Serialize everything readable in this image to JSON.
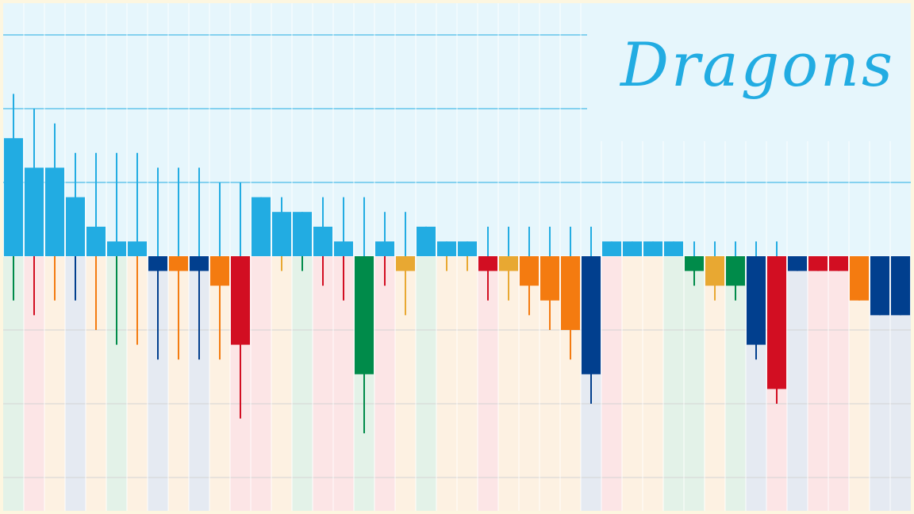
{
  "chart_data": {
    "type": "bar",
    "title": "Dragons",
    "xlabel": "",
    "ylabel": "",
    "ylim": [
      -17,
      17
    ],
    "grid": true,
    "legend": "none",
    "colors": {
      "top_background": "#e6f6fc",
      "frame": "#fdf6e0",
      "upper_gridline": "#22ace2",
      "lower_gridline": "#d4d4d4",
      "column_separator": "#ffffff",
      "positive": "#22ace2",
      "negative_palette": [
        "#d20e22",
        "#f47b10",
        "#e8a832",
        "#008b4a",
        "#013f8e"
      ],
      "column_tints": [
        "#e3f2e8",
        "#fce5e6",
        "#fdf1e2",
        "#e5eaf2"
      ]
    },
    "bars": [
      {
        "value": 8,
        "whisker_high": 11,
        "whisker_low": -3,
        "color": "#22ace2",
        "whisker_low_color": "#008b4a",
        "tint": "#e3f2e8"
      },
      {
        "value": 6,
        "whisker_high": 10,
        "whisker_low": -4,
        "color": "#22ace2",
        "whisker_low_color": "#d20e22",
        "tint": "#fce5e6"
      },
      {
        "value": 6,
        "whisker_high": 9,
        "whisker_low": -3,
        "color": "#22ace2",
        "whisker_low_color": "#f47b10",
        "tint": "#fdf1e2"
      },
      {
        "value": 4,
        "whisker_high": 7,
        "whisker_low": -3,
        "color": "#22ace2",
        "whisker_low_color": "#013f8e",
        "tint": "#e5eaf2"
      },
      {
        "value": 2,
        "whisker_high": 7,
        "whisker_low": -5,
        "color": "#22ace2",
        "whisker_low_color": "#f47b10",
        "tint": "#fdf1e2"
      },
      {
        "value": 1,
        "whisker_high": 7,
        "whisker_low": -6,
        "color": "#22ace2",
        "whisker_low_color": "#008b4a",
        "tint": "#e3f2e8"
      },
      {
        "value": 1,
        "whisker_high": 7,
        "whisker_low": -6,
        "color": "#22ace2",
        "whisker_low_color": "#f47b10",
        "tint": "#fdf1e2"
      },
      {
        "value": -1,
        "whisker_high": 6,
        "whisker_low": -7,
        "color": "#013f8e",
        "whisker_low_color": "#013f8e",
        "tint": "#e5eaf2"
      },
      {
        "value": -1,
        "whisker_high": 6,
        "whisker_low": -7,
        "color": "#f47b10",
        "whisker_low_color": "#f47b10",
        "tint": "#fdf1e2"
      },
      {
        "value": -1,
        "whisker_high": 6,
        "whisker_low": -7,
        "color": "#013f8e",
        "whisker_low_color": "#013f8e",
        "tint": "#e5eaf2"
      },
      {
        "value": -2,
        "whisker_high": 5,
        "whisker_low": -7,
        "color": "#f47b10",
        "whisker_low_color": "#f47b10",
        "tint": "#fdf1e2"
      },
      {
        "value": -6,
        "whisker_high": 5,
        "whisker_low": -11,
        "color": "#d20e22",
        "whisker_low_color": "#d20e22",
        "tint": "#fce5e6"
      },
      {
        "value": 4,
        "whisker_high": 4,
        "whisker_low": 0,
        "color": "#22ace2",
        "whisker_low_color": "#d20e22",
        "tint": "#fce5e6"
      },
      {
        "value": 3,
        "whisker_high": 4,
        "whisker_low": -1,
        "color": "#22ace2",
        "whisker_low_color": "#e8a832",
        "tint": "#fdf1e2"
      },
      {
        "value": 3,
        "whisker_high": 3,
        "whisker_low": -1,
        "color": "#22ace2",
        "whisker_low_color": "#008b4a",
        "tint": "#e3f2e8"
      },
      {
        "value": 2,
        "whisker_high": 4,
        "whisker_low": -2,
        "color": "#22ace2",
        "whisker_low_color": "#d20e22",
        "tint": "#fce5e6"
      },
      {
        "value": 1,
        "whisker_high": 4,
        "whisker_low": -3,
        "color": "#22ace2",
        "whisker_low_color": "#d20e22",
        "tint": "#fce5e6"
      },
      {
        "value": -8,
        "whisker_high": 4,
        "whisker_low": -12,
        "color": "#008b4a",
        "whisker_low_color": "#008b4a",
        "tint": "#e3f2e8"
      },
      {
        "value": 1,
        "whisker_high": 3,
        "whisker_low": -2,
        "color": "#22ace2",
        "whisker_low_color": "#d20e22",
        "tint": "#fce5e6"
      },
      {
        "value": -1,
        "whisker_high": 3,
        "whisker_low": -4,
        "color": "#e8a832",
        "whisker_low_color": "#e8a832",
        "tint": "#fdf1e2"
      },
      {
        "value": 2,
        "whisker_high": 2,
        "whisker_low": 0,
        "color": "#22ace2",
        "whisker_low_color": "#008b4a",
        "tint": "#e3f2e8"
      },
      {
        "value": 1,
        "whisker_high": 1,
        "whisker_low": -1,
        "color": "#22ace2",
        "whisker_low_color": "#e8a832",
        "tint": "#fdf1e2"
      },
      {
        "value": 1,
        "whisker_high": 1,
        "whisker_low": -1,
        "color": "#22ace2",
        "whisker_low_color": "#e8a832",
        "tint": "#fdf1e2"
      },
      {
        "value": -1,
        "whisker_high": 2,
        "whisker_low": -3,
        "color": "#d20e22",
        "whisker_low_color": "#d20e22",
        "tint": "#fce5e6"
      },
      {
        "value": -1,
        "whisker_high": 2,
        "whisker_low": -3,
        "color": "#e8a832",
        "whisker_low_color": "#e8a832",
        "tint": "#fdf1e2"
      },
      {
        "value": -2,
        "whisker_high": 2,
        "whisker_low": -4,
        "color": "#f47b10",
        "whisker_low_color": "#f47b10",
        "tint": "#fdf1e2"
      },
      {
        "value": -3,
        "whisker_high": 2,
        "whisker_low": -5,
        "color": "#f47b10",
        "whisker_low_color": "#f47b10",
        "tint": "#fdf1e2"
      },
      {
        "value": -5,
        "whisker_high": 2,
        "whisker_low": -7,
        "color": "#f47b10",
        "whisker_low_color": "#f47b10",
        "tint": "#fdf1e2"
      },
      {
        "value": -8,
        "whisker_high": 2,
        "whisker_low": -10,
        "color": "#013f8e",
        "whisker_low_color": "#013f8e",
        "tint": "#e5eaf2"
      },
      {
        "value": 1,
        "whisker_high": 1,
        "whisker_low": 0,
        "color": "#22ace2",
        "whisker_low_color": "#d20e22",
        "tint": "#fce5e6"
      },
      {
        "value": 1,
        "whisker_high": 1,
        "whisker_low": 0,
        "color": "#22ace2",
        "whisker_low_color": "#e8a832",
        "tint": "#fdf1e2"
      },
      {
        "value": 1,
        "whisker_high": 1,
        "whisker_low": 0,
        "color": "#22ace2",
        "whisker_low_color": "#e8a832",
        "tint": "#fdf1e2"
      },
      {
        "value": 1,
        "whisker_high": 1,
        "whisker_low": 0,
        "color": "#22ace2",
        "whisker_low_color": "#008b4a",
        "tint": "#e3f2e8"
      },
      {
        "value": -1,
        "whisker_high": 1,
        "whisker_low": -2,
        "color": "#008b4a",
        "whisker_low_color": "#008b4a",
        "tint": "#e3f2e8"
      },
      {
        "value": -2,
        "whisker_high": 1,
        "whisker_low": -3,
        "color": "#e8a832",
        "whisker_low_color": "#e8a832",
        "tint": "#fdf1e2"
      },
      {
        "value": -2,
        "whisker_high": 1,
        "whisker_low": -3,
        "color": "#008b4a",
        "whisker_low_color": "#008b4a",
        "tint": "#e3f2e8"
      },
      {
        "value": -6,
        "whisker_high": 1,
        "whisker_low": -7,
        "color": "#013f8e",
        "whisker_low_color": "#013f8e",
        "tint": "#e5eaf2"
      },
      {
        "value": -9,
        "whisker_high": 1,
        "whisker_low": -10,
        "color": "#d20e22",
        "whisker_low_color": "#d20e22",
        "tint": "#fce5e6"
      },
      {
        "value": -1,
        "whisker_high": 0,
        "whisker_low": -1,
        "color": "#013f8e",
        "whisker_low_color": "#013f8e",
        "tint": "#e5eaf2"
      },
      {
        "value": -1,
        "whisker_high": 0,
        "whisker_low": -1,
        "color": "#d20e22",
        "whisker_low_color": "#d20e22",
        "tint": "#fce5e6"
      },
      {
        "value": -1,
        "whisker_high": 0,
        "whisker_low": -1,
        "color": "#d20e22",
        "whisker_low_color": "#d20e22",
        "tint": "#fce5e6"
      },
      {
        "value": -3,
        "whisker_high": 0,
        "whisker_low": -3,
        "color": "#f47b10",
        "whisker_low_color": "#f47b10",
        "tint": "#fdf1e2"
      },
      {
        "value": -4,
        "whisker_high": 0,
        "whisker_low": -4,
        "color": "#013f8e",
        "whisker_low_color": "#013f8e",
        "tint": "#e5eaf2"
      },
      {
        "value": -4,
        "whisker_high": 0,
        "whisker_low": -4,
        "color": "#013f8e",
        "whisker_low_color": "#013f8e",
        "tint": "#e5eaf2"
      }
    ]
  }
}
